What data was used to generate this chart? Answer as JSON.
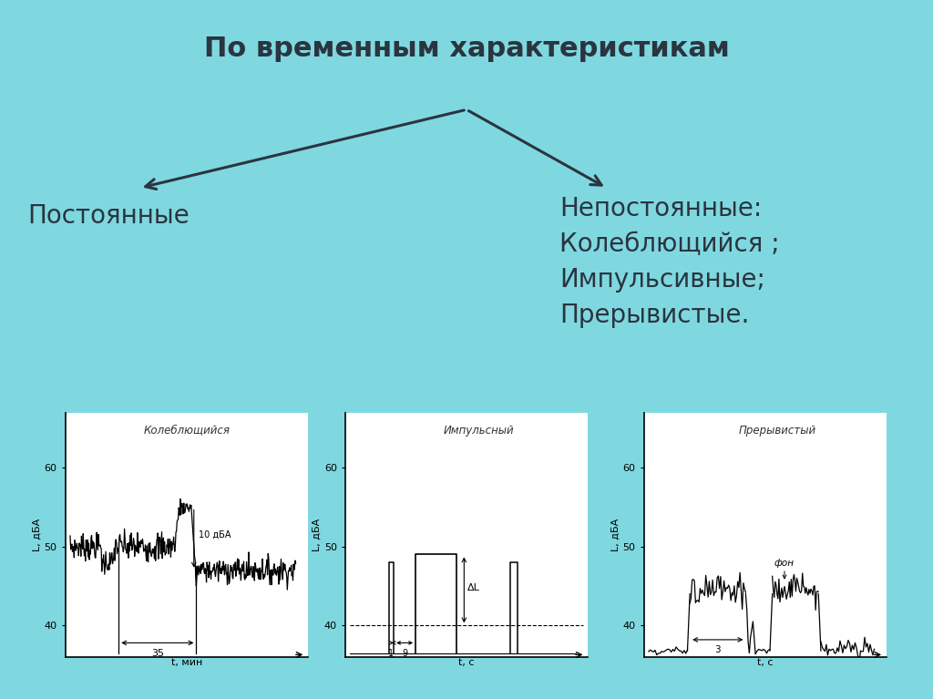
{
  "bg_color": "#7fd8e0",
  "title": "По временным характеристикам",
  "title_fontsize": 22,
  "left_label": "Постоянные",
  "right_label": "Непостоянные:\nКолеблющийся ;\nИмпульсивные;\nПрерывистые.",
  "text_fontsize": 20,
  "graph1_title": "Колеблющийся",
  "graph2_title": "Импульсный",
  "graph3_title": "Прерывистый",
  "ylabel": "L, дБА",
  "xlabel1": "t, мин",
  "xlabel23": "t, с",
  "text_color": "#2a3540",
  "graph_bg": "white",
  "panel_color": "#e8e8e8"
}
